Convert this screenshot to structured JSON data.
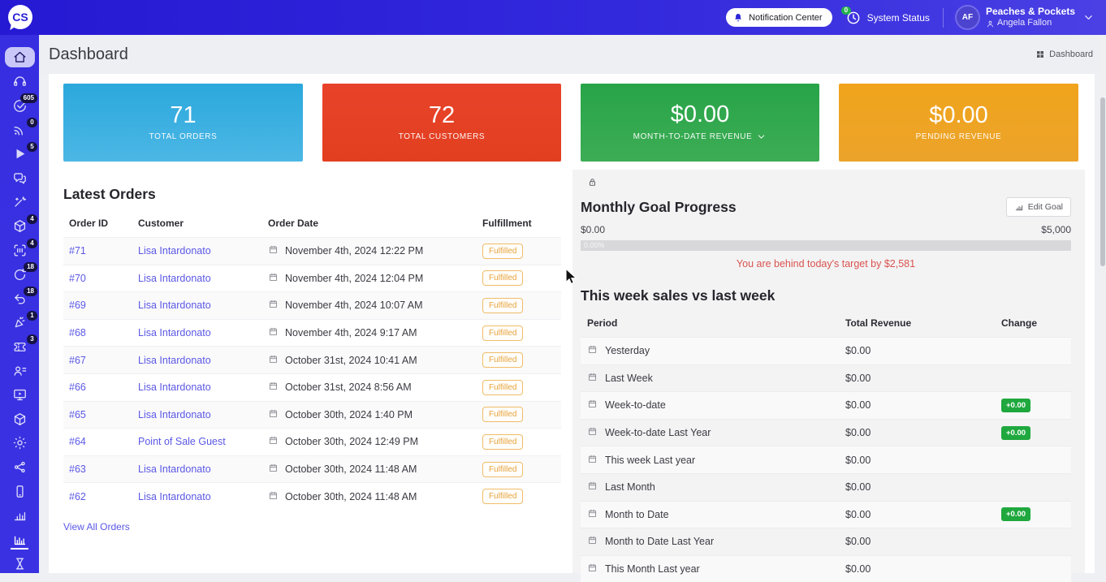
{
  "topbar": {
    "logo_text": "CS",
    "notification_center_label": "Notification Center",
    "system_status_label": "System Status",
    "system_status_badge": "0",
    "account": {
      "avatar_initials": "AF",
      "company": "Peaches & Pockets",
      "user": "Angela Fallon"
    }
  },
  "header": {
    "title": "Dashboard",
    "breadcrumb": "Dashboard"
  },
  "sidebar": {
    "items": [
      {
        "icon": "home-icon",
        "active": true,
        "style": "pill"
      },
      {
        "icon": "headset-icon"
      },
      {
        "icon": "reviews-icon",
        "badge": "605"
      },
      {
        "icon": "broadcast-icon",
        "badge": "0"
      },
      {
        "icon": "play-icon",
        "badge": "5"
      },
      {
        "icon": "chat-icon"
      },
      {
        "icon": "magic-wand-icon"
      },
      {
        "icon": "package-icon",
        "badge": "4"
      },
      {
        "icon": "scan-icon",
        "badge": "4"
      },
      {
        "icon": "repeat-icon",
        "badge": "18"
      },
      {
        "icon": "return-icon",
        "badge": "18"
      },
      {
        "icon": "party-icon",
        "badge": "1"
      },
      {
        "icon": "ticket-icon",
        "badge": "3"
      },
      {
        "icon": "contacts-icon"
      },
      {
        "icon": "media-icon"
      },
      {
        "icon": "box-icon"
      },
      {
        "icon": "settings-icon"
      },
      {
        "icon": "share-icon"
      },
      {
        "icon": "mobile-icon"
      },
      {
        "icon": "chart-icon"
      },
      {
        "icon": "analytics-icon",
        "active": true,
        "style": "underline"
      },
      {
        "icon": "hourglass-icon"
      }
    ]
  },
  "stat_cards": [
    {
      "value": "71",
      "label": "TOTAL ORDERS",
      "gradient": [
        "#2ba8dc",
        "#4cb7e5"
      ],
      "has_dropdown": false
    },
    {
      "value": "72",
      "label": "TOTAL CUSTOMERS",
      "gradient": [
        "#e8432a",
        "#e23f20"
      ],
      "has_dropdown": false
    },
    {
      "value": "$0.00",
      "label": "MONTH-TO-DATE REVENUE",
      "gradient": [
        "#28a448",
        "#3dad55"
      ],
      "has_dropdown": true
    },
    {
      "value": "$0.00",
      "label": "PENDING REVENUE",
      "gradient": [
        "#f0a41c",
        "#eca32a"
      ],
      "has_dropdown": false
    }
  ],
  "latest_orders": {
    "title": "Latest Orders",
    "columns": [
      "Order ID",
      "Customer",
      "Order Date",
      "Fulfillment"
    ],
    "rows": [
      {
        "id": "#71",
        "customer": "Lisa Intardonato",
        "date": "November 4th, 2024 12:22 PM",
        "fulfillment": "Fulfilled"
      },
      {
        "id": "#70",
        "customer": "Lisa Intardonato",
        "date": "November 4th, 2024 12:04 PM",
        "fulfillment": "Fulfilled"
      },
      {
        "id": "#69",
        "customer": "Lisa Intardonato",
        "date": "November 4th, 2024 10:07 AM",
        "fulfillment": "Fulfilled"
      },
      {
        "id": "#68",
        "customer": "Lisa Intardonato",
        "date": "November 4th, 2024 9:17 AM",
        "fulfillment": "Fulfilled"
      },
      {
        "id": "#67",
        "customer": "Lisa Intardonato",
        "date": "October 31st, 2024 10:41 AM",
        "fulfillment": "Fulfilled"
      },
      {
        "id": "#66",
        "customer": "Lisa Intardonato",
        "date": "October 31st, 2024 8:56 AM",
        "fulfillment": "Fulfilled"
      },
      {
        "id": "#65",
        "customer": "Lisa Intardonato",
        "date": "October 30th, 2024 1:40 PM",
        "fulfillment": "Fulfilled"
      },
      {
        "id": "#64",
        "customer": "Point of Sale Guest",
        "date": "October 30th, 2024 12:49 PM",
        "fulfillment": "Fulfilled"
      },
      {
        "id": "#63",
        "customer": "Lisa Intardonato",
        "date": "October 30th, 2024 11:48 AM",
        "fulfillment": "Fulfilled"
      },
      {
        "id": "#62",
        "customer": "Lisa Intardonato",
        "date": "October 30th, 2024 11:48 AM",
        "fulfillment": "Fulfilled"
      }
    ],
    "view_all_label": "View All Orders"
  },
  "monthly_goal": {
    "title": "Monthly Goal Progress",
    "edit_button_label": "Edit Goal",
    "range_min": "$0.00",
    "range_max": "$5,000",
    "progress_label": "0.00%",
    "progress_pct": 0,
    "warning": "You are behind today's target by $2,581"
  },
  "weekly_sales": {
    "title": "This week sales vs last week",
    "columns": [
      "Period",
      "Total Revenue",
      "Change"
    ],
    "rows": [
      {
        "period": "Yesterday",
        "revenue": "$0.00",
        "change": ""
      },
      {
        "period": "Last Week",
        "revenue": "$0.00",
        "change": ""
      },
      {
        "period": "Week-to-date",
        "revenue": "$0.00",
        "change": "+0.00"
      },
      {
        "period": "Week-to-date Last Year",
        "revenue": "$0.00",
        "change": "+0.00"
      },
      {
        "period": "This week Last year",
        "revenue": "$0.00",
        "change": ""
      },
      {
        "period": "Last Month",
        "revenue": "$0.00",
        "change": ""
      },
      {
        "period": "Month to Date",
        "revenue": "$0.00",
        "change": "+0.00"
      },
      {
        "period": "Month to Date Last Year",
        "revenue": "$0.00",
        "change": ""
      },
      {
        "period": "This Month Last year",
        "revenue": "$0.00",
        "change": ""
      }
    ]
  },
  "colors": {
    "topbar_blue": "#3228dc",
    "sidebar_blue": "#3a32e2",
    "card_orders": "#2ba8dc",
    "card_customers": "#e8432a",
    "card_mtd_revenue": "#28a448",
    "card_pending_revenue": "#f0a41c",
    "link": "#5b58e4",
    "fulfilled_badge": "#e8a23c",
    "change_badge_green": "#1fa83e",
    "warning_red": "#d9534f"
  }
}
